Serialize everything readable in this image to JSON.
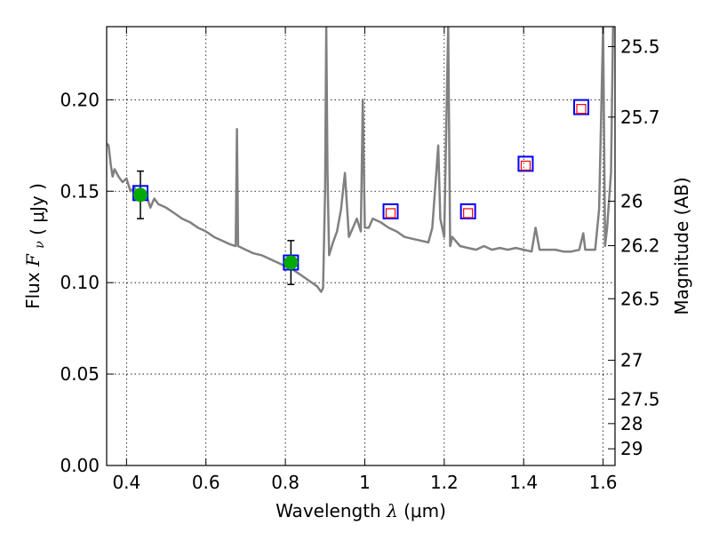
{
  "chart_data": {
    "type": "scatter",
    "xlabel": {
      "text": "Wavelength",
      "symbol": "λ",
      "unit": "(μm)"
    },
    "ylabel": {
      "text": "Flux",
      "symbol": "F",
      "subscript": "ν",
      "unit": "( μJy )"
    },
    "ylabel_right": "Magnitude (AB)",
    "xlim": [
      0.35,
      1.63
    ],
    "ylim": [
      0.0,
      0.24
    ],
    "x_ticks": [
      {
        "v": 0.4,
        "label": "0.4"
      },
      {
        "v": 0.6,
        "label": "0.6"
      },
      {
        "v": 0.8,
        "label": "0.8"
      },
      {
        "v": 1.0,
        "label": "1"
      },
      {
        "v": 1.2,
        "label": "1.2"
      },
      {
        "v": 1.4,
        "label": "1.4"
      },
      {
        "v": 1.6,
        "label": "1.6"
      }
    ],
    "y_ticks": [
      {
        "v": 0.0,
        "label": "0.00"
      },
      {
        "v": 0.05,
        "label": "0.05"
      },
      {
        "v": 0.1,
        "label": "0.10"
      },
      {
        "v": 0.15,
        "label": "0.15"
      },
      {
        "v": 0.2,
        "label": "0.20"
      }
    ],
    "right_ticks": [
      {
        "label": "25.5",
        "mag": 25.5
      },
      {
        "label": "25.7",
        "mag": 25.7
      },
      {
        "label": "26",
        "mag": 26.0
      },
      {
        "label": "26.2",
        "mag": 26.2
      },
      {
        "label": "26.5",
        "mag": 26.5
      },
      {
        "label": "27",
        "mag": 27.0
      },
      {
        "label": "27.5",
        "mag": 27.5
      },
      {
        "label": "28",
        "mag": 28.0
      },
      {
        "label": "29",
        "mag": 29.0
      }
    ],
    "grid": true,
    "colors": {
      "model": "#808080",
      "observed": "#00aa00",
      "model_phot": "#0000ff",
      "predicted": "#ff0000",
      "error": "#000000"
    },
    "model_spectrum": [
      [
        0.35,
        0.176
      ],
      [
        0.355,
        0.175
      ],
      [
        0.36,
        0.165
      ],
      [
        0.365,
        0.158
      ],
      [
        0.37,
        0.162
      ],
      [
        0.38,
        0.158
      ],
      [
        0.39,
        0.155
      ],
      [
        0.4,
        0.157
      ],
      [
        0.41,
        0.15
      ],
      [
        0.42,
        0.152
      ],
      [
        0.43,
        0.147
      ],
      [
        0.44,
        0.145
      ],
      [
        0.45,
        0.148
      ],
      [
        0.46,
        0.141
      ],
      [
        0.47,
        0.146
      ],
      [
        0.48,
        0.143
      ],
      [
        0.5,
        0.141
      ],
      [
        0.52,
        0.138
      ],
      [
        0.54,
        0.135
      ],
      [
        0.56,
        0.133
      ],
      [
        0.58,
        0.13
      ],
      [
        0.6,
        0.128
      ],
      [
        0.62,
        0.125
      ],
      [
        0.64,
        0.123
      ],
      [
        0.66,
        0.121
      ],
      [
        0.675,
        0.12
      ],
      [
        0.678,
        0.184
      ],
      [
        0.681,
        0.12
      ],
      [
        0.7,
        0.118
      ],
      [
        0.72,
        0.116
      ],
      [
        0.74,
        0.115
      ],
      [
        0.76,
        0.113
      ],
      [
        0.78,
        0.111
      ],
      [
        0.8,
        0.109
      ],
      [
        0.82,
        0.107
      ],
      [
        0.84,
        0.104
      ],
      [
        0.86,
        0.101
      ],
      [
        0.88,
        0.098
      ],
      [
        0.89,
        0.095
      ],
      [
        0.895,
        0.097
      ],
      [
        0.9,
        0.15
      ],
      [
        0.903,
        0.24
      ],
      [
        0.906,
        0.16
      ],
      [
        0.91,
        0.115
      ],
      [
        0.92,
        0.122
      ],
      [
        0.93,
        0.128
      ],
      [
        0.94,
        0.14
      ],
      [
        0.95,
        0.16
      ],
      [
        0.96,
        0.125
      ],
      [
        0.97,
        0.13
      ],
      [
        0.98,
        0.135
      ],
      [
        0.99,
        0.128
      ],
      [
        0.995,
        0.2
      ],
      [
        1.0,
        0.13
      ],
      [
        1.01,
        0.13
      ],
      [
        1.02,
        0.135
      ],
      [
        1.04,
        0.133
      ],
      [
        1.06,
        0.13
      ],
      [
        1.08,
        0.128
      ],
      [
        1.1,
        0.125
      ],
      [
        1.12,
        0.124
      ],
      [
        1.14,
        0.123
      ],
      [
        1.16,
        0.122
      ],
      [
        1.17,
        0.13
      ],
      [
        1.18,
        0.16
      ],
      [
        1.185,
        0.175
      ],
      [
        1.19,
        0.135
      ],
      [
        1.2,
        0.125
      ],
      [
        1.21,
        0.24
      ],
      [
        1.215,
        0.12
      ],
      [
        1.22,
        0.125
      ],
      [
        1.24,
        0.12
      ],
      [
        1.26,
        0.119
      ],
      [
        1.28,
        0.118
      ],
      [
        1.3,
        0.12
      ],
      [
        1.32,
        0.118
      ],
      [
        1.34,
        0.119
      ],
      [
        1.36,
        0.118
      ],
      [
        1.38,
        0.119
      ],
      [
        1.4,
        0.118
      ],
      [
        1.42,
        0.117
      ],
      [
        1.43,
        0.13
      ],
      [
        1.44,
        0.118
      ],
      [
        1.46,
        0.118
      ],
      [
        1.48,
        0.118
      ],
      [
        1.5,
        0.117
      ],
      [
        1.52,
        0.117
      ],
      [
        1.54,
        0.118
      ],
      [
        1.55,
        0.127
      ],
      [
        1.555,
        0.118
      ],
      [
        1.57,
        0.118
      ],
      [
        1.58,
        0.118
      ],
      [
        1.59,
        0.14
      ],
      [
        1.6,
        0.24
      ],
      [
        1.605,
        0.12
      ],
      [
        1.61,
        0.13
      ],
      [
        1.615,
        0.145
      ],
      [
        1.62,
        0.16
      ],
      [
        1.625,
        0.24
      ]
    ],
    "observed_points": [
      {
        "x": 0.435,
        "y": 0.148,
        "yerr": 0.013
      },
      {
        "x": 0.814,
        "y": 0.111,
        "yerr": 0.012
      }
    ],
    "model_photometry": [
      {
        "x": 0.435,
        "y": 0.149
      },
      {
        "x": 0.814,
        "y": 0.111
      },
      {
        "x": 1.065,
        "y": 0.139
      },
      {
        "x": 1.26,
        "y": 0.139
      },
      {
        "x": 1.405,
        "y": 0.165
      },
      {
        "x": 1.545,
        "y": 0.196
      }
    ],
    "predicted_points": [
      {
        "x": 1.065,
        "y": 0.138
      },
      {
        "x": 1.26,
        "y": 0.138
      },
      {
        "x": 1.405,
        "y": 0.164
      },
      {
        "x": 1.545,
        "y": 0.195
      }
    ]
  }
}
